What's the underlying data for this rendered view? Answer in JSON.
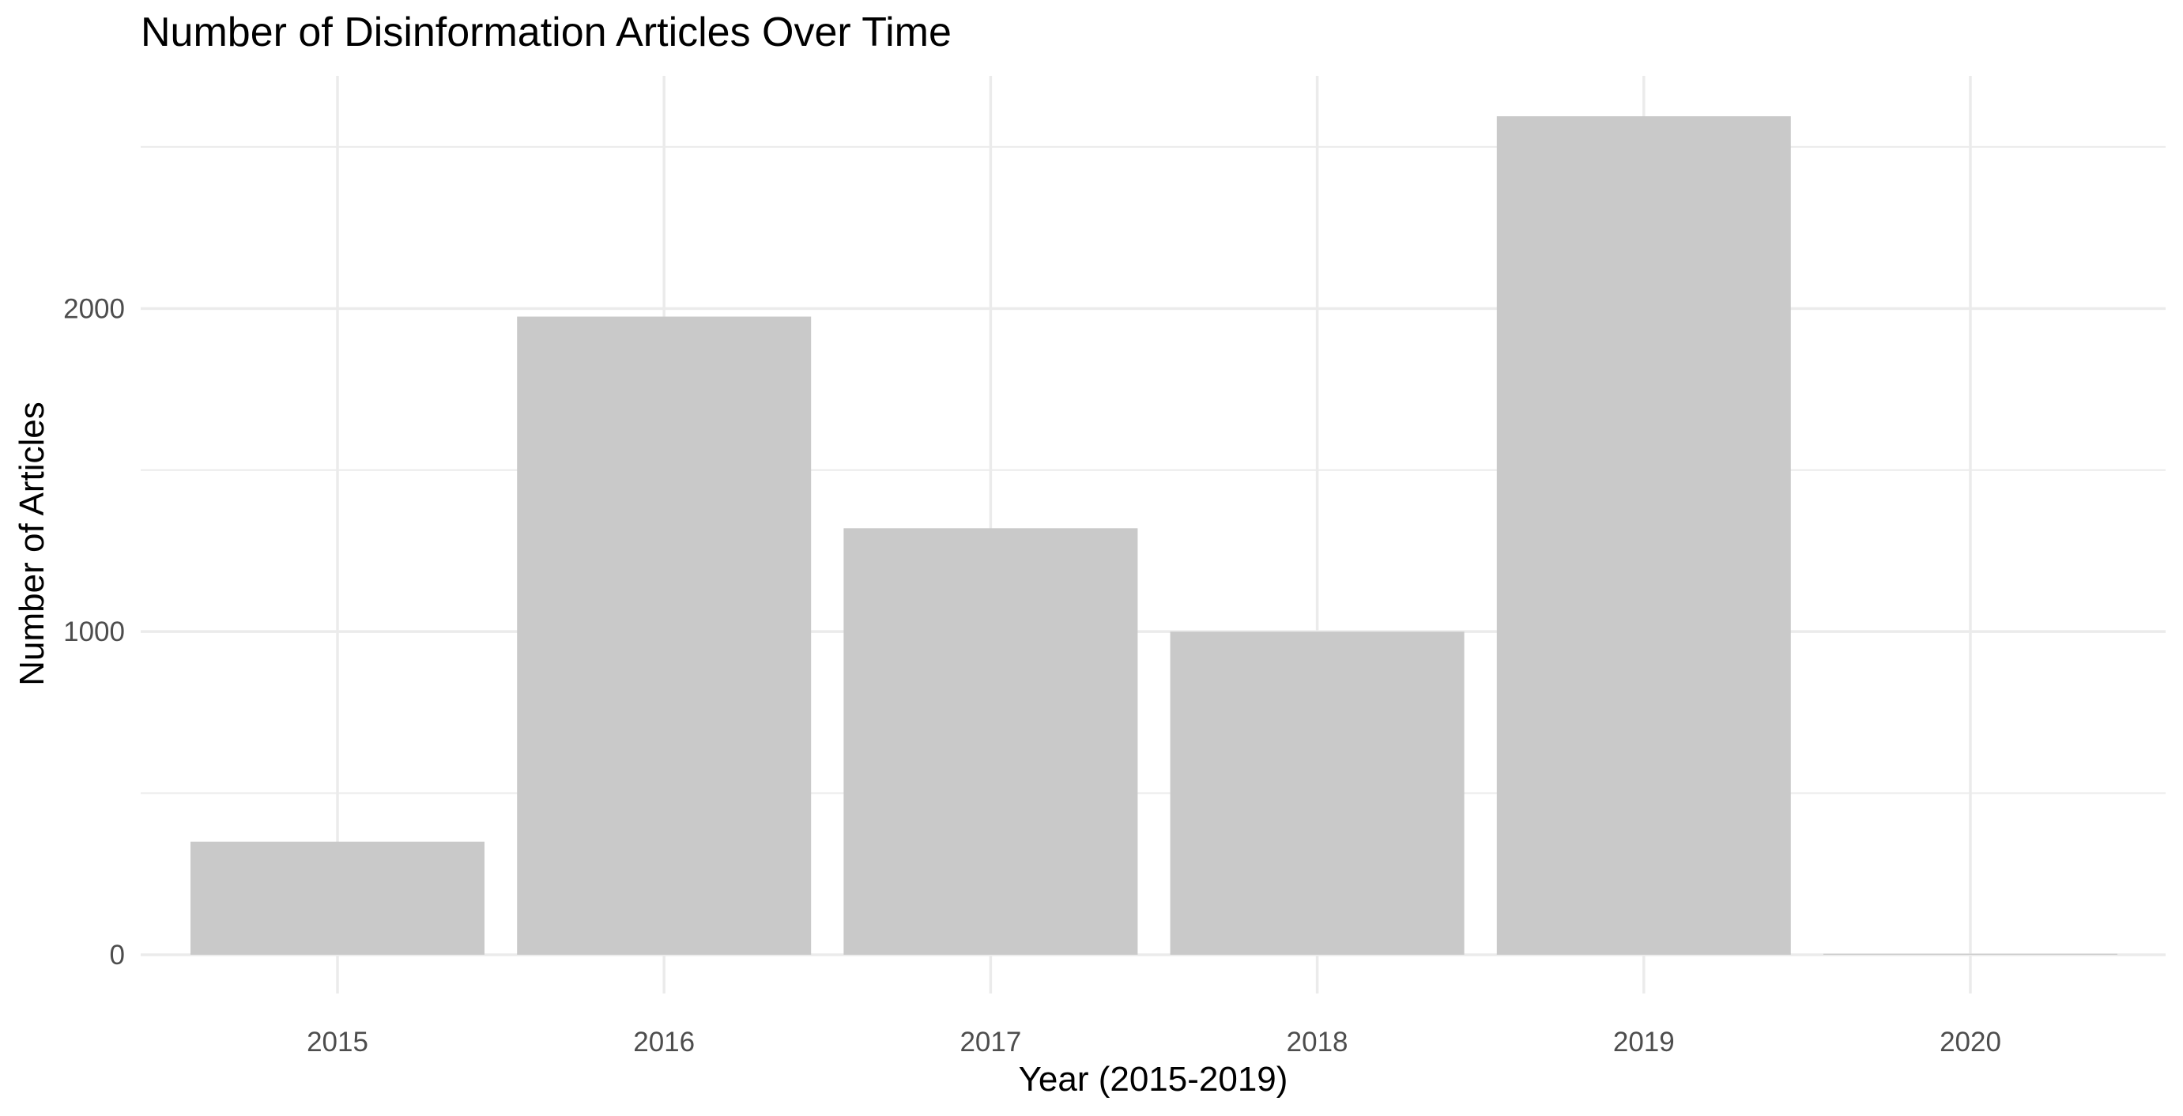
{
  "chart_data": {
    "type": "bar",
    "title": "Number of Disinformation Articles Over Time",
    "xlabel": "Year (2015-2019)",
    "ylabel": "Number of Articles",
    "categories": [
      "2015",
      "2016",
      "2017",
      "2018",
      "2019",
      "2020"
    ],
    "values": [
      350,
      1975,
      1320,
      1000,
      2595,
      3
    ],
    "ylim": [
      -120,
      2720
    ],
    "yticks": [
      0,
      1000,
      2000
    ],
    "yticks_minor": [
      500,
      1500,
      2500
    ],
    "ytick_labels": [
      "0",
      "1000",
      "2000"
    ],
    "grid": true,
    "legend": "none",
    "bar_color": "#c9c9c9"
  }
}
